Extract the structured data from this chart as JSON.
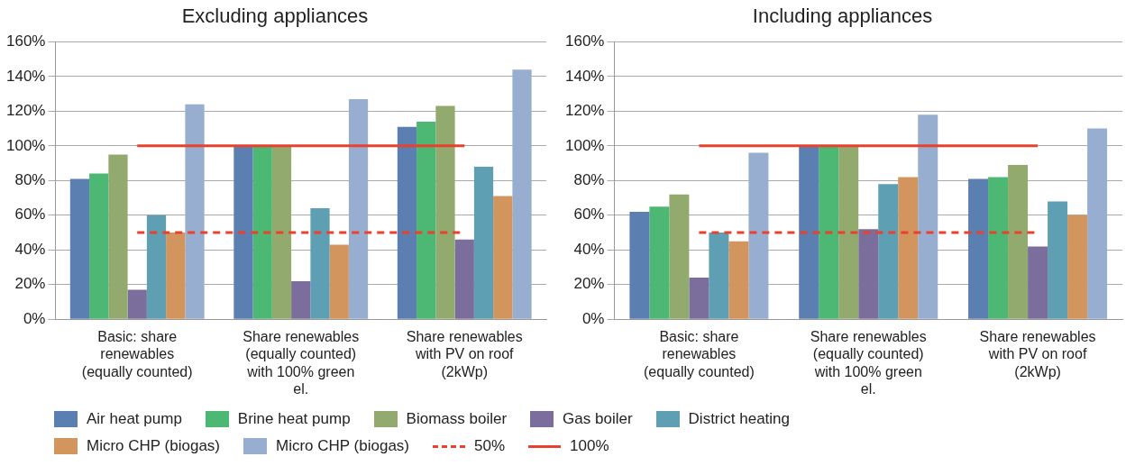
{
  "chart_data": [
    {
      "type": "bar",
      "title": "Excluding appliances",
      "categories": [
        "Basic: share renewables (equally counted)",
        "Share renewables (equally counted) with 100% green el.",
        "Share renewables with PV on roof (2kWp)"
      ],
      "series": [
        {
          "name": "Air heat pump",
          "color": "#5b7fb0",
          "values": [
            81,
            100,
            111
          ]
        },
        {
          "name": "Brine heat pump",
          "color": "#4cb874",
          "values": [
            84,
            100,
            114
          ]
        },
        {
          "name": "Biomass boiler",
          "color": "#93aa6e",
          "values": [
            95,
            100,
            123
          ]
        },
        {
          "name": "Gas boiler",
          "color": "#7b6d9c",
          "values": [
            17,
            22,
            46
          ]
        },
        {
          "name": "District heating",
          "color": "#5f9fb4",
          "values": [
            60,
            64,
            88
          ]
        },
        {
          "name": "Micro CHP (biogas)",
          "color": "#d3955e",
          "values": [
            50,
            43,
            71
          ]
        },
        {
          "name": "Micro CHP (biogas)",
          "color": "#98aed0",
          "values": [
            124,
            127,
            144
          ]
        }
      ],
      "ylim": [
        0,
        160
      ],
      "yticks": [
        {
          "value": 0,
          "label": "0%"
        },
        {
          "value": 20,
          "label": "20%"
        },
        {
          "value": 40,
          "label": "40%"
        },
        {
          "value": 60,
          "label": "60%"
        },
        {
          "value": 80,
          "label": "80%"
        },
        {
          "value": 100,
          "label": "100%"
        },
        {
          "value": 120,
          "label": "120%"
        },
        {
          "value": 140,
          "label": "140%"
        },
        {
          "value": 160,
          "label": "160%"
        }
      ],
      "ref_lines": [
        {
          "axis": "y",
          "value": 50,
          "label": "50%",
          "color": "#e8412c",
          "line_style": "dashed"
        },
        {
          "axis": "y",
          "value": 100,
          "label": "100%",
          "color": "#e8412c",
          "line_style": "solid"
        }
      ],
      "grid": "y",
      "legend": "bottom"
    },
    {
      "type": "bar",
      "title": "Including appliances",
      "categories": [
        "Basic: share renewables (equally counted)",
        "Share renewables (equally counted) with 100% green el.",
        "Share renewables with PV on roof (2kWp)"
      ],
      "series": [
        {
          "color": "#5b7fb0",
          "values": [
            62,
            100,
            81
          ]
        },
        {
          "color": "#4cb874",
          "values": [
            65,
            100,
            82
          ]
        },
        {
          "color": "#93aa6e",
          "values": [
            72,
            100,
            89
          ]
        },
        {
          "color": "#7b6d9c",
          "values": [
            24,
            52,
            42
          ]
        },
        {
          "color": "#5f9fb4",
          "values": [
            50,
            78,
            68
          ]
        },
        {
          "color": "#d3955e",
          "values": [
            45,
            82,
            60
          ]
        },
        {
          "color": "#98aed0",
          "values": [
            96,
            118,
            110
          ]
        }
      ],
      "ylim": [
        0,
        160
      ],
      "yticks": [
        {
          "value": 0,
          "label": "0%"
        },
        {
          "value": 20,
          "label": "20%"
        },
        {
          "value": 40,
          "label": "40%"
        },
        {
          "value": 60,
          "label": "60%"
        },
        {
          "value": 80,
          "label": "80%"
        },
        {
          "value": 100,
          "label": "100%"
        },
        {
          "value": 120,
          "label": "120%"
        },
        {
          "value": 140,
          "label": "140%"
        },
        {
          "value": 160,
          "label": "160%"
        }
      ],
      "ref_lines": [
        {
          "axis": "y",
          "value": 50,
          "color": "#e8412c",
          "line_style": "dashed"
        },
        {
          "axis": "y",
          "value": 100,
          "color": "#e8412c",
          "line_style": "solid"
        }
      ],
      "grid": "y",
      "legend": false
    }
  ]
}
